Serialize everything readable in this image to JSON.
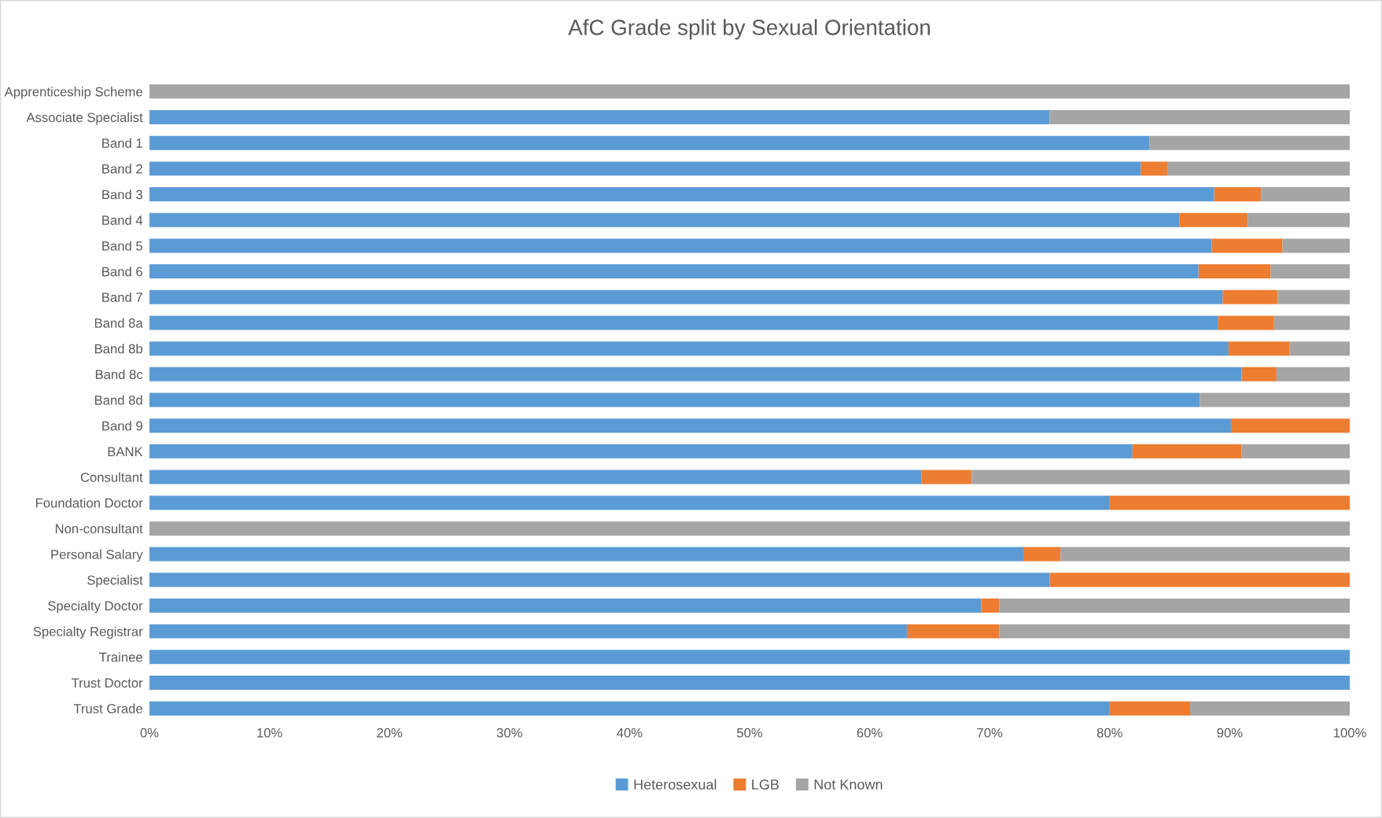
{
  "chart_data": {
    "type": "bar",
    "orientation": "horizontal",
    "stacked": true,
    "title": "AfC Grade split by Sexual Orientation",
    "categories": [
      "Apprenticeship Scheme",
      "Associate Specialist",
      "Band 1",
      "Band 2",
      "Band 3",
      "Band 4",
      "Band 5",
      "Band 6",
      "Band 7",
      "Band 8a",
      "Band 8b",
      "Band 8c",
      "Band 8d",
      "Band 9",
      "BANK",
      "Consultant",
      "Foundation Doctor",
      "Non-consultant",
      "Personal Salary",
      "Specialist",
      "Specialty Doctor",
      "Specialty Registrar",
      "Trainee",
      "Trust Doctor",
      "Trust Grade"
    ],
    "series": [
      {
        "name": "Heterosexual",
        "color": "#5b9bd5",
        "values": [
          0,
          75,
          83.3,
          82.6,
          88.7,
          85.8,
          88.5,
          87.4,
          89.4,
          89.0,
          89.9,
          91.0,
          87.5,
          90.1,
          81.9,
          64.3,
          80,
          0,
          72.8,
          75,
          69.3,
          63.1,
          100,
          100,
          80
        ]
      },
      {
        "name": "LGB",
        "color": "#ed7d31",
        "values": [
          0,
          0,
          0,
          2.2,
          3.9,
          5.7,
          5.9,
          6.0,
          4.6,
          4.7,
          5.1,
          2.9,
          0,
          9.9,
          9.1,
          4.2,
          20,
          0,
          3.1,
          25,
          1.5,
          7.7,
          0,
          0,
          6.7
        ]
      },
      {
        "name": "Not Known",
        "color": "#a5a5a5",
        "values": [
          100,
          25,
          16.7,
          15.2,
          7.4,
          8.5,
          5.6,
          6.6,
          6.0,
          6.3,
          5.0,
          6.1,
          12.5,
          0,
          9.0,
          31.5,
          0,
          100,
          24.1,
          0,
          29.2,
          29.2,
          0,
          0,
          13.3
        ]
      }
    ],
    "xlim": [
      0,
      100
    ],
    "xticks": [
      {
        "value": 0,
        "label": "0%"
      },
      {
        "value": 10,
        "label": "10%"
      },
      {
        "value": 20,
        "label": "20%"
      },
      {
        "value": 30,
        "label": "30%"
      },
      {
        "value": 40,
        "label": "40%"
      },
      {
        "value": 50,
        "label": "50%"
      },
      {
        "value": 60,
        "label": "60%"
      },
      {
        "value": 70,
        "label": "70%"
      },
      {
        "value": 80,
        "label": "80%"
      },
      {
        "value": 90,
        "label": "90%"
      },
      {
        "value": 100,
        "label": "100%"
      }
    ],
    "grid": false,
    "legend": "bottom"
  }
}
